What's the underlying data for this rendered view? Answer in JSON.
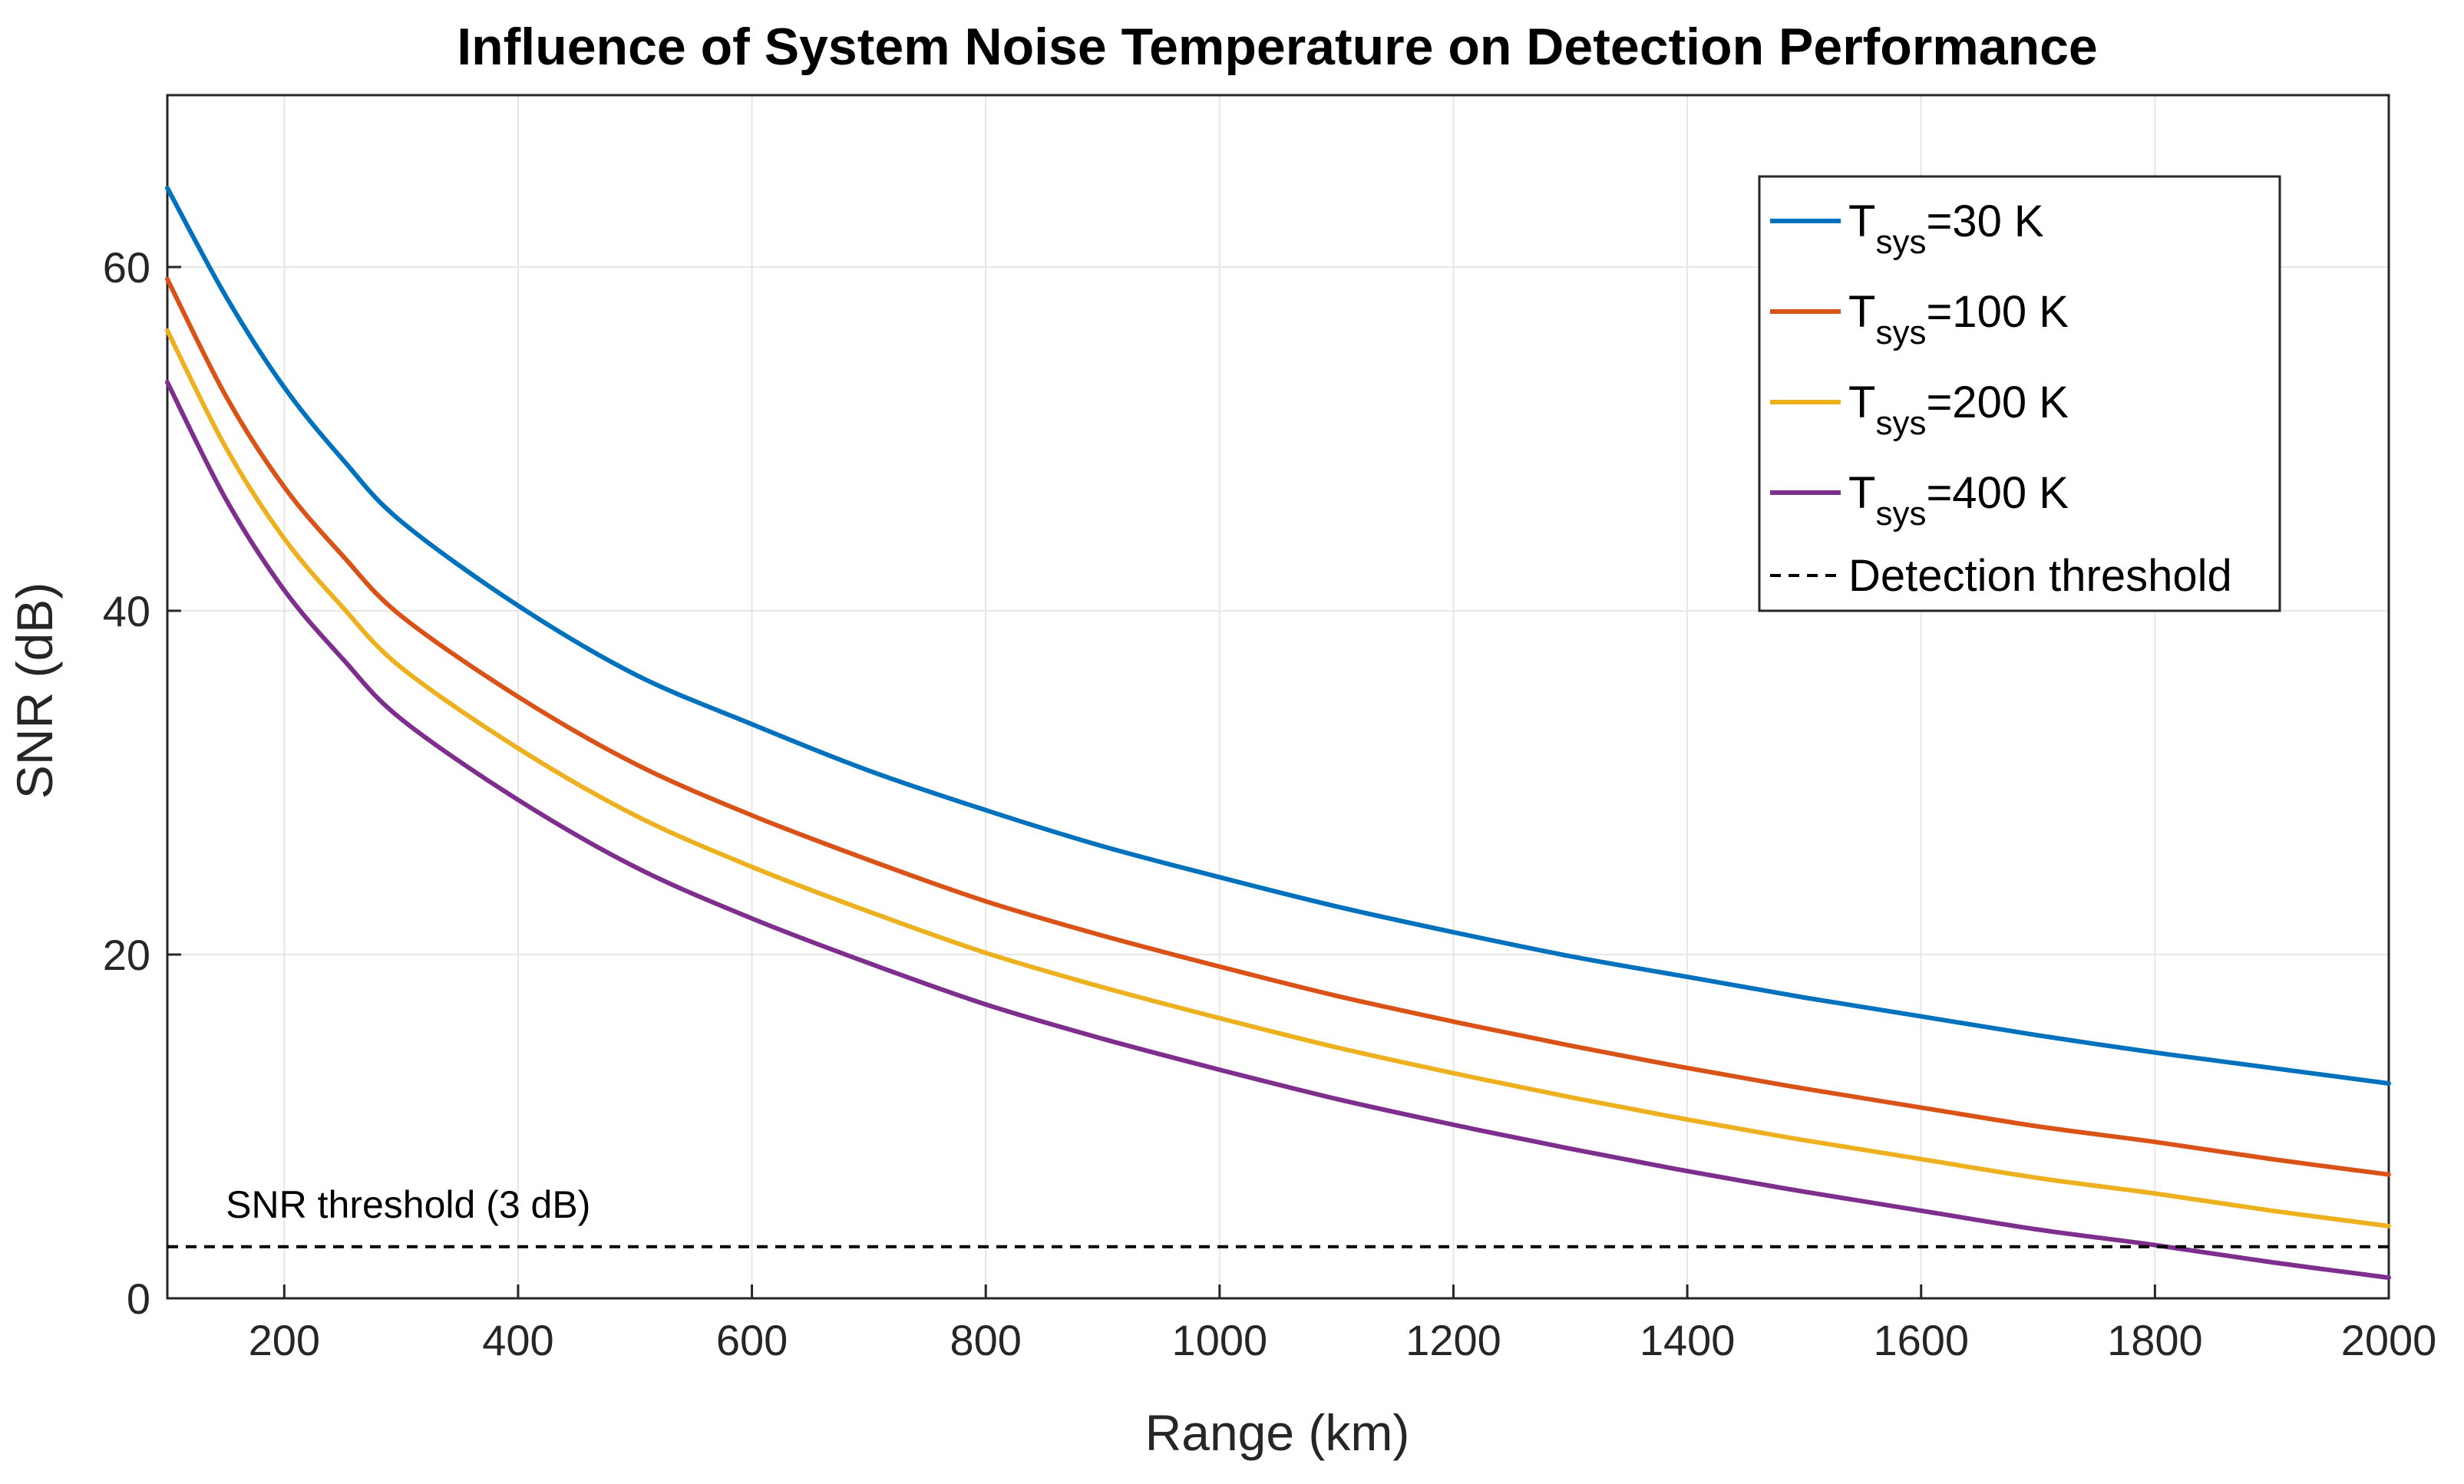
{
  "chart_data": {
    "type": "line",
    "title": "Influence of System Noise Temperature on Detection Performance",
    "xlabel": "Range (km)",
    "ylabel": "SNR (dB)",
    "xlim": [
      100,
      2000
    ],
    "ylim": [
      0,
      70
    ],
    "xticks": [
      200,
      400,
      600,
      800,
      1000,
      1200,
      1400,
      1600,
      1800,
      2000
    ],
    "yticks": [
      0,
      20,
      40,
      60
    ],
    "grid": true,
    "legend_position": "top-right",
    "x": [
      100,
      150,
      200,
      250,
      300,
      400,
      500,
      600,
      700,
      800,
      900,
      1000,
      1100,
      1200,
      1300,
      1400,
      1500,
      1600,
      1700,
      1800,
      1900,
      2000
    ],
    "series": [
      {
        "name": "T_sys=30 K",
        "legend_main": "T",
        "legend_sub": "sys",
        "legend_rest": "=30 K",
        "color": "#0072BD",
        "values": [
          64.6,
          58.3,
          53.0,
          48.8,
          45.2,
          40.3,
          36.3,
          33.4,
          30.7,
          28.4,
          26.3,
          24.5,
          22.8,
          21.3,
          19.9,
          18.7,
          17.5,
          16.4,
          15.3,
          14.3,
          13.4,
          12.5
        ]
      },
      {
        "name": "T_sys=100 K",
        "legend_main": "T",
        "legend_sub": "sys",
        "legend_rest": "=100 K",
        "color": "#D95319",
        "values": [
          59.3,
          52.5,
          47.2,
          43.2,
          39.7,
          35.0,
          31.1,
          28.1,
          25.5,
          23.1,
          21.1,
          19.3,
          17.6,
          16.1,
          14.7,
          13.4,
          12.2,
          11.1,
          10.0,
          9.1,
          8.1,
          7.2
        ]
      },
      {
        "name": "T_sys=200 K",
        "legend_main": "T",
        "legend_sub": "sys",
        "legend_rest": "=200 K",
        "color": "#EDB120",
        "values": [
          56.3,
          49.5,
          44.2,
          40.2,
          36.7,
          32.0,
          28.1,
          25.1,
          22.5,
          20.1,
          18.1,
          16.3,
          14.6,
          13.1,
          11.7,
          10.4,
          9.2,
          8.1,
          7.0,
          6.1,
          5.1,
          4.2
        ]
      },
      {
        "name": "T_sys=400 K",
        "legend_main": "T",
        "legend_sub": "sys",
        "legend_rest": "=400 K",
        "color": "#7E2F8E",
        "values": [
          53.3,
          46.5,
          41.2,
          37.2,
          33.7,
          29.0,
          25.1,
          22.1,
          19.5,
          17.1,
          15.1,
          13.3,
          11.6,
          10.1,
          8.7,
          7.4,
          6.2,
          5.1,
          4.0,
          3.1,
          2.1,
          1.2
        ]
      }
    ],
    "threshold": {
      "name": "Detection threshold",
      "value": 3,
      "color": "#000000",
      "annotation": "SNR threshold (3 dB)"
    }
  }
}
